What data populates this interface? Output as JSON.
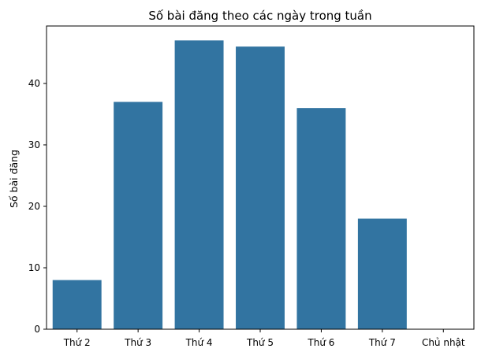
{
  "chart_data": {
    "type": "bar",
    "title": "Số bài đăng theo các ngày trong tuần",
    "xlabel": "",
    "ylabel": "Số bài đăng",
    "categories": [
      "Thứ 2",
      "Thứ 3",
      "Thứ 4",
      "Thứ 5",
      "Thứ 6",
      "Thứ 7",
      "Chủ nhật"
    ],
    "values": [
      8,
      37,
      47,
      46,
      36,
      18,
      0
    ],
    "ylim": [
      0,
      49.35
    ],
    "yticks": [
      0,
      10,
      20,
      30,
      40
    ],
    "bar_color": "#3274a1",
    "grid": false,
    "legend": "none"
  }
}
